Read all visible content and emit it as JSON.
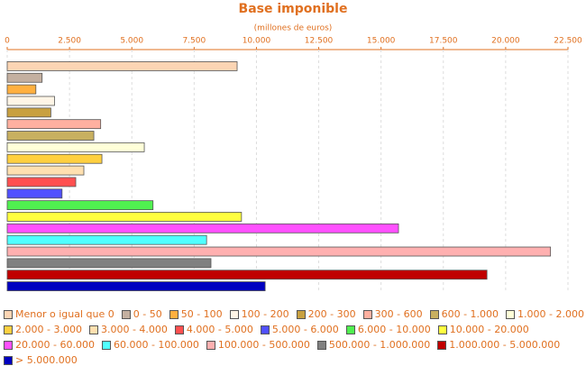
{
  "chart_data": {
    "type": "bar",
    "orientation": "horizontal",
    "title": "Base imponible",
    "subtitle": "(millones de euros)",
    "categories": [
      "Menor o igual que 0",
      "0 - 50",
      "50 - 100",
      "100 - 200",
      "200 - 300",
      "300 - 600",
      "600 - 1.000",
      "1.000 - 2.000",
      "2.000 - 3.000",
      "3.000 - 4.000",
      "4.000 - 5.000",
      "5.000 - 6.000",
      "6.000 - 10.000",
      "10.000 - 20.000",
      "20.000 - 60.000",
      "60.000 - 100.000",
      "100.000 - 500.000",
      "500.000 - 1.000.000",
      "1.000.000 - 5.000.000",
      "> 5.000.000"
    ],
    "values": [
      9225,
      1400,
      1150,
      1900,
      1750,
      3750,
      3475,
      5500,
      3800,
      3075,
      2750,
      2200,
      5850,
      9400,
      15700,
      8000,
      21800,
      8175,
      19250,
      10350
    ],
    "colors": [
      "#fcd5b4",
      "#c4b0a0",
      "#ffb040",
      "#fff5e6",
      "#c8a040",
      "#ffb0a0",
      "#c8b060",
      "#ffffd8",
      "#ffd040",
      "#ffe0b0",
      "#ff5050",
      "#5050ff",
      "#50f050",
      "#ffff40",
      "#ff50ff",
      "#50ffff",
      "#ffb0b0",
      "#808080",
      "#c00000",
      "#0000c0"
    ],
    "xlim": [
      0,
      22500
    ],
    "xticks": [
      0,
      {
        "value": 2500,
        "label": "2.500"
      },
      {
        "value": 5000,
        "label": "5.000"
      },
      {
        "value": 7500,
        "label": "7.500"
      },
      {
        "value": 10000,
        "label": "10.000"
      },
      {
        "value": 12500,
        "label": "12.500"
      },
      {
        "value": 15000,
        "label": "15.000"
      },
      {
        "value": 17500,
        "label": "17.500"
      },
      {
        "value": 20000,
        "label": "20.000"
      },
      {
        "value": 22500,
        "label": "22.500"
      }
    ],
    "grid": true,
    "legend": "bottom"
  }
}
